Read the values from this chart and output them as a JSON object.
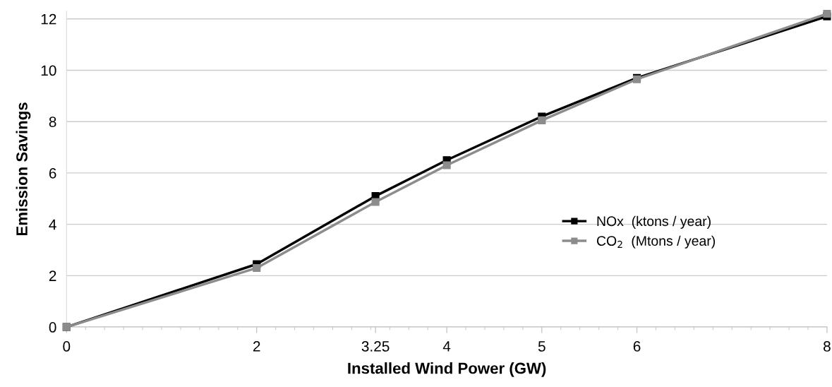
{
  "chart_data": {
    "type": "line",
    "xlabel": "Installed Wind Power (GW)",
    "ylabel": "Emission Savings",
    "x": [
      0,
      2,
      3.25,
      4,
      5,
      6,
      8
    ],
    "series": [
      {
        "name": "NOx  (ktons / year)",
        "color": "#000000",
        "values": [
          0,
          2.45,
          5.1,
          6.5,
          8.2,
          9.7,
          12.1
        ]
      },
      {
        "name": "CO$_{2}$  (Mtons / year)",
        "color": "#8c8c8c",
        "values": [
          0,
          2.3,
          4.87,
          6.3,
          8.05,
          9.65,
          12.2
        ]
      }
    ],
    "xlim": [
      0,
      8
    ],
    "xticks": [
      0,
      2,
      3.25,
      4,
      5,
      6,
      8
    ],
    "ylim": [
      0,
      12.3
    ],
    "yticks": [
      0,
      2,
      4,
      6,
      8,
      10,
      12
    ],
    "grid": "y",
    "legend": "center right",
    "marker": "square",
    "line_style": "solid"
  }
}
